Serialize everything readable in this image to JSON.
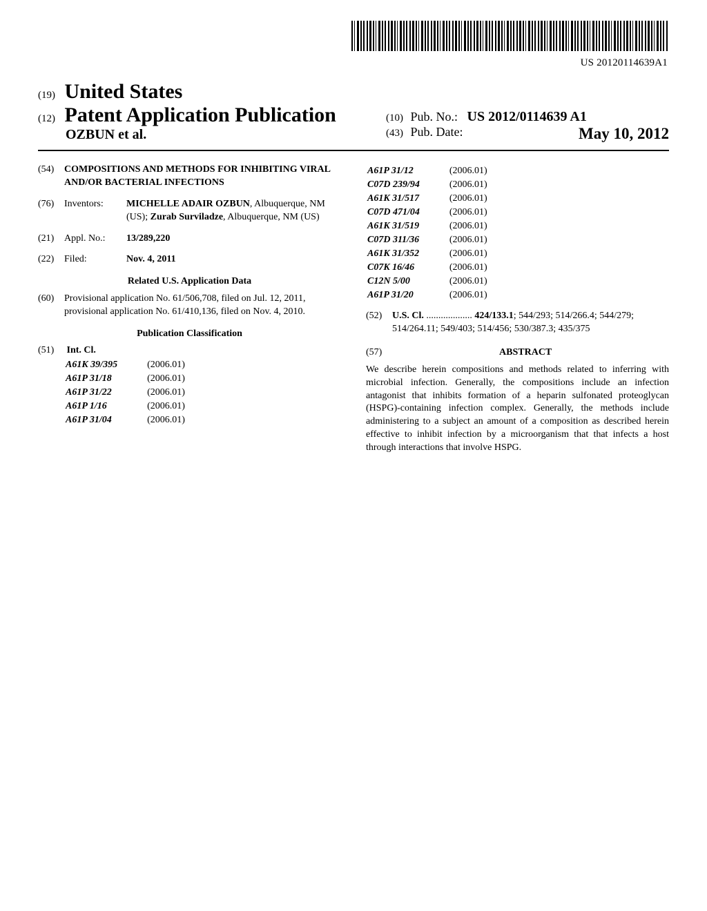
{
  "barcode_text": "US 20120114639A1",
  "header": {
    "code_19": "(19)",
    "country": "United States",
    "code_12": "(12)",
    "doc_type": "Patent Application Publication",
    "authors_line": "OZBUN et al.",
    "code_10": "(10)",
    "pub_no_label": "Pub. No.:",
    "pub_no": "US 2012/0114639 A1",
    "code_43": "(43)",
    "pub_date_label": "Pub. Date:",
    "pub_date": "May 10, 2012"
  },
  "fields": {
    "f54": {
      "n": "(54)",
      "text": "COMPOSITIONS AND METHODS FOR INHIBITING VIRAL AND/OR BACTERIAL INFECTIONS"
    },
    "f76": {
      "n": "(76)",
      "label": "Inventors:",
      "text_html": [
        "MICHELLE ADAIR OZBUN",
        ", Albuquerque, NM (US); ",
        "Zurab Surviladze",
        ", Albuquerque, NM (US)"
      ]
    },
    "f21": {
      "n": "(21)",
      "label": "Appl. No.:",
      "value": "13/289,220"
    },
    "f22": {
      "n": "(22)",
      "label": "Filed:",
      "value": "Nov. 4, 2011"
    },
    "related_head": "Related U.S. Application Data",
    "f60": {
      "n": "(60)",
      "text": "Provisional application No. 61/506,708, filed on Jul. 12, 2011, provisional application No. 61/410,136, filed on Nov. 4, 2010."
    },
    "pubclass_head": "Publication Classification",
    "f51": {
      "n": "(51)",
      "label": "Int. Cl."
    },
    "intcl_left": [
      [
        "A61K 39/395",
        "(2006.01)"
      ],
      [
        "A61P 31/18",
        "(2006.01)"
      ],
      [
        "A61P 31/22",
        "(2006.01)"
      ],
      [
        "A61P 1/16",
        "(2006.01)"
      ],
      [
        "A61P 31/04",
        "(2006.01)"
      ]
    ],
    "intcl_right": [
      [
        "A61P 31/12",
        "(2006.01)"
      ],
      [
        "C07D 239/94",
        "(2006.01)"
      ],
      [
        "A61K 31/517",
        "(2006.01)"
      ],
      [
        "C07D 471/04",
        "(2006.01)"
      ],
      [
        "A61K 31/519",
        "(2006.01)"
      ],
      [
        "C07D 311/36",
        "(2006.01)"
      ],
      [
        "A61K 31/352",
        "(2006.01)"
      ],
      [
        "C07K 16/46",
        "(2006.01)"
      ],
      [
        "C12N 5/00",
        "(2006.01)"
      ],
      [
        "A61P 31/20",
        "(2006.01)"
      ]
    ],
    "f52": {
      "n": "(52)",
      "label": "U.S. Cl.",
      "dots": " ................... ",
      "first_bold": "424/133.1",
      "rest": "; 544/293; 514/266.4; 544/279; 514/264.11; 549/403; 514/456; 530/387.3; 435/375"
    },
    "f57": {
      "n": "(57)",
      "label": "ABSTRACT"
    },
    "abstract": "We describe herein compositions and methods related to inferring with microbial infection. Generally, the compositions include an infection antagonist that inhibits formation of a heparin sulfonated proteoglycan (HSPG)-containing infection complex. Generally, the methods include administering to a subject an amount of a composition as described herein effective to inhibit infection by a microorganism that that infects a host through interactions that involve HSPG."
  }
}
